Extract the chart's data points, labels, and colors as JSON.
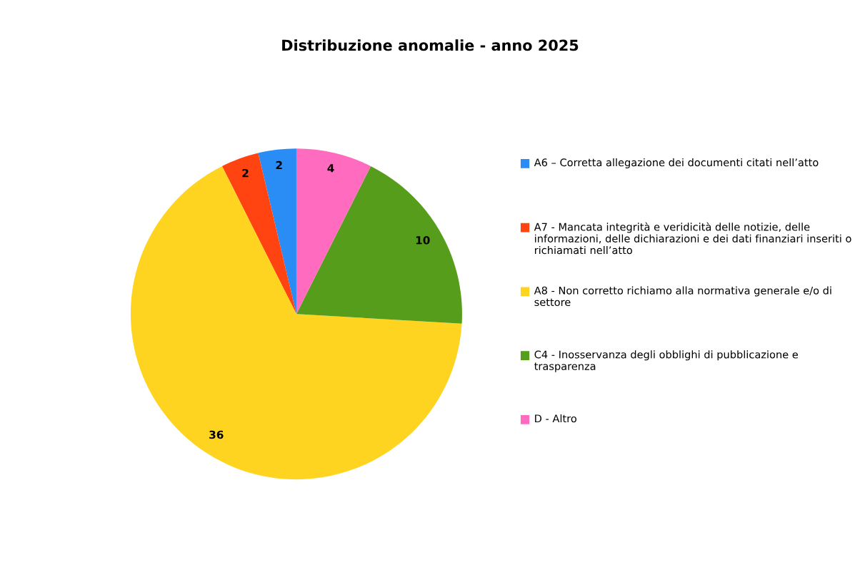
{
  "chart_data": {
    "type": "pie",
    "title": "Distribuzione anomalie - anno 2025",
    "categories": [
      "A6 – Corretta allegazione dei documenti citati nell’atto",
      "A7 - Mancata integrità e veridicità delle notizie, delle informazioni, delle dichiarazioni e dei dati finanziari inseriti o richiamati nell’atto",
      "A8 - Non corretto richiamo alla normativa generale e/o di settore",
      "C4 - Inosservanza degli obblighi di pubblicazione e trasparenza",
      "D - Altro"
    ],
    "values": [
      2,
      2,
      36,
      10,
      4
    ],
    "colors": [
      "#2a8cf5",
      "#ff4412",
      "#fed421",
      "#579d1c",
      "#ff6cbf"
    ],
    "data_labels": true,
    "legend": "right"
  }
}
